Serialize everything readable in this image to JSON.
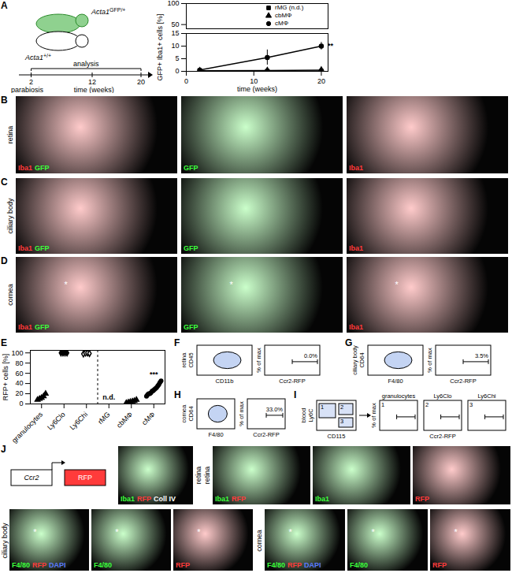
{
  "figure": {
    "panel_letters": [
      "A",
      "B",
      "C",
      "D",
      "E",
      "F",
      "G",
      "H",
      "I",
      "J"
    ],
    "a_diagram": {
      "donor": {
        "base": "Acta1",
        "sup": "GFP/+"
      },
      "host": {
        "base": "Acta1",
        "sup": "+/+"
      },
      "event": "parabiosis",
      "analysis": "analysis",
      "timeline_label": "time (weeks)",
      "timeline_range": [
        0,
        20
      ],
      "timeline_ticks": [
        2,
        12,
        20
      ]
    },
    "image_rows": [
      {
        "panel": "B",
        "row_label": "retina",
        "images": [
          {
            "channels": [
              {
                "text": "Iba1",
                "color": "#ff3b3b"
              },
              {
                "text": "GFP",
                "color": "#3bff3b"
              }
            ]
          },
          {
            "channels": [
              {
                "text": "GFP",
                "color": "#3bff3b"
              }
            ]
          },
          {
            "channels": [
              {
                "text": "Iba1",
                "color": "#ff3b3b"
              }
            ]
          }
        ]
      },
      {
        "panel": "C",
        "row_label": "ciliary body",
        "images": [
          {
            "channels": [
              {
                "text": "Iba1",
                "color": "#ff3b3b"
              },
              {
                "text": "GFP",
                "color": "#3bff3b"
              }
            ]
          },
          {
            "channels": [
              {
                "text": "GFP",
                "color": "#3bff3b"
              }
            ]
          },
          {
            "channels": [
              {
                "text": "Iba1",
                "color": "#ff3b3b"
              }
            ]
          }
        ]
      },
      {
        "panel": "D",
        "row_label": "cornea",
        "images": [
          {
            "channels": [
              {
                "text": "Iba1",
                "color": "#ff3b3b"
              },
              {
                "text": "GFP",
                "color": "#3bff3b"
              }
            ],
            "mark": "*"
          },
          {
            "channels": [
              {
                "text": "GFP",
                "color": "#3bff3b"
              }
            ],
            "mark": "*"
          },
          {
            "channels": [
              {
                "text": "Iba1",
                "color": "#ff3b3b"
              }
            ],
            "mark": "*"
          }
        ]
      }
    ],
    "flow_panels": [
      {
        "panel": "F",
        "tissue": "retina",
        "scatter_y": "CD45",
        "scatter_x": "CD11b",
        "hist_x": "Ccr2-RFP",
        "hist_y": "% of max",
        "gate": {
          "value": 0.0,
          "label": "0.0%"
        }
      },
      {
        "panel": "G",
        "tissue": "ciliary body",
        "scatter_y": "CD64",
        "scatter_x": "F4/80",
        "hist_x": "Ccr2-RFP",
        "hist_y": "% of max",
        "gate": {
          "value": 3.5,
          "label": "3.5%"
        }
      },
      {
        "panel": "H",
        "tissue": "cornea",
        "scatter_y": "CD64",
        "scatter_x": "F4/80",
        "hist_x": "Ccr2-RFP",
        "hist_y": "% of max",
        "gate": {
          "value": 33.0,
          "label": "33.0%"
        }
      }
    ],
    "blood_panel": {
      "panel": "I",
      "tissue": "blood",
      "scatter_y": "Ly6C",
      "scatter_x": "CD115",
      "gates": [
        "1",
        "2",
        "3"
      ],
      "hist_titles": [
        "granulocytes",
        "Ly6Clo",
        "Ly6Chi"
      ],
      "hist_x": "Ccr2-RFP",
      "hist_y": "% of max"
    },
    "j": {
      "construct": [
        "Ccr2",
        "RFP"
      ],
      "groups": [
        {
          "row_label": "retina",
          "images": [
            {
              "channels": [
                {
                  "text": "Iba1",
                  "color": "#3bff3b"
                },
                {
                  "text": "RFP",
                  "color": "#ff3b3b"
                },
                {
                  "text": "Coll IV",
                  "color": "#ffffff"
                }
              ]
            }
          ]
        },
        {
          "row_label": "retina",
          "images": [
            {
              "channels": [
                {
                  "text": "Iba1",
                  "color": "#3bff3b"
                },
                {
                  "text": "RFP",
                  "color": "#ff3b3b"
                }
              ]
            },
            {
              "channels": [
                {
                  "text": "Iba1",
                  "color": "#3bff3b"
                }
              ]
            },
            {
              "channels": [
                {
                  "text": "RFP",
                  "color": "#ff3b3b"
                }
              ]
            }
          ]
        },
        {
          "row_label": "ciliary body",
          "images": [
            {
              "channels": [
                {
                  "text": "F4/80",
                  "color": "#3bff3b"
                },
                {
                  "text": "RFP",
                  "color": "#ff3b3b"
                },
                {
                  "text": "DAPI",
                  "color": "#5a7bff"
                }
              ],
              "mark": "*"
            },
            {
              "channels": [
                {
                  "text": "F4/80",
                  "color": "#3bff3b"
                }
              ],
              "mark": "*"
            },
            {
              "channels": [
                {
                  "text": "RFP",
                  "color": "#ff3b3b"
                }
              ],
              "mark": "*"
            }
          ]
        },
        {
          "row_label": "cornea",
          "images": [
            {
              "channels": [
                {
                  "text": "F4/80",
                  "color": "#3bff3b"
                },
                {
                  "text": "RFP",
                  "color": "#ff3b3b"
                },
                {
                  "text": "DAPI",
                  "color": "#5a7bff"
                }
              ],
              "mark": "*"
            },
            {
              "channels": [
                {
                  "text": "F4/80",
                  "color": "#3bff3b"
                }
              ],
              "mark": "*"
            },
            {
              "channels": [
                {
                  "text": "RFP",
                  "color": "#ff3b3b"
                }
              ],
              "mark": "*"
            }
          ]
        }
      ]
    }
  },
  "chart_data": [
    {
      "type": "line",
      "xlim": [
        0,
        21
      ],
      "ylim": [
        40,
        100
      ],
      "yticks": [
        50,
        100
      ],
      "tick_labels": "y"
    },
    {
      "type": "line",
      "y_label": "GFP+ Iba1+ cells [%]",
      "x_label": "time (weeks)",
      "x": [
        2,
        12,
        20
      ],
      "xlim": [
        0,
        21
      ],
      "xticks": [
        0,
        10,
        20
      ],
      "ylim": [
        0,
        15
      ],
      "yticks": [
        0,
        5,
        10,
        15
      ],
      "legend": "top-right",
      "series": [
        {
          "name": "rMG (n.d.)",
          "color": "#000000",
          "marker": "square",
          "values": [
            0,
            0,
            0
          ]
        },
        {
          "name": "cbMΦ",
          "color": "#000000",
          "marker": "triangle",
          "values": [
            0.2,
            0.3,
            0.5
          ],
          "errors": [
            0.1,
            0.2,
            0.3
          ]
        },
        {
          "name": "cMΦ",
          "color": "#000000",
          "marker": "circle",
          "values": [
            0.5,
            5.5,
            10
          ],
          "errors": [
            0.3,
            3,
            1.5
          ]
        }
      ],
      "annotations": [
        {
          "text": "**",
          "series": "cMΦ",
          "x": 20
        }
      ]
    },
    {
      "type": "scatter",
      "y_label": "RFP+ cells [%]",
      "ylim": [
        0,
        105
      ],
      "yticks": [
        0,
        20,
        40,
        60,
        80,
        100
      ],
      "series": [
        {
          "name": "granulocytes",
          "color": "#000000",
          "marker": "triangle",
          "values": [
            8,
            10,
            12,
            15,
            20
          ]
        },
        {
          "name": "Ly6Clo",
          "color": "#000000",
          "marker": "diamond",
          "values": [
            100,
            100,
            100,
            100
          ]
        },
        {
          "name": "Ly6Chi",
          "color": "#000000",
          "marker": "diamond_open",
          "values": [
            98,
            100,
            100,
            99
          ]
        },
        {
          "name": "rMG",
          "color": "#000000",
          "marker": "circle",
          "values": []
        },
        {
          "name": "cbMΦ",
          "color": "#000000",
          "marker": "triangle",
          "values": [
            2,
            3,
            4,
            5,
            6,
            8
          ]
        },
        {
          "name": "cMΦ",
          "color": "#000000",
          "marker": "circle",
          "values": [
            15,
            18,
            20,
            20,
            22,
            25,
            26,
            28,
            30,
            32,
            35,
            38,
            42,
            45
          ]
        }
      ],
      "annotations": [
        {
          "text": "n.d.",
          "series": "rMG"
        },
        {
          "text": "***",
          "series": "cMΦ"
        }
      ]
    }
  ]
}
